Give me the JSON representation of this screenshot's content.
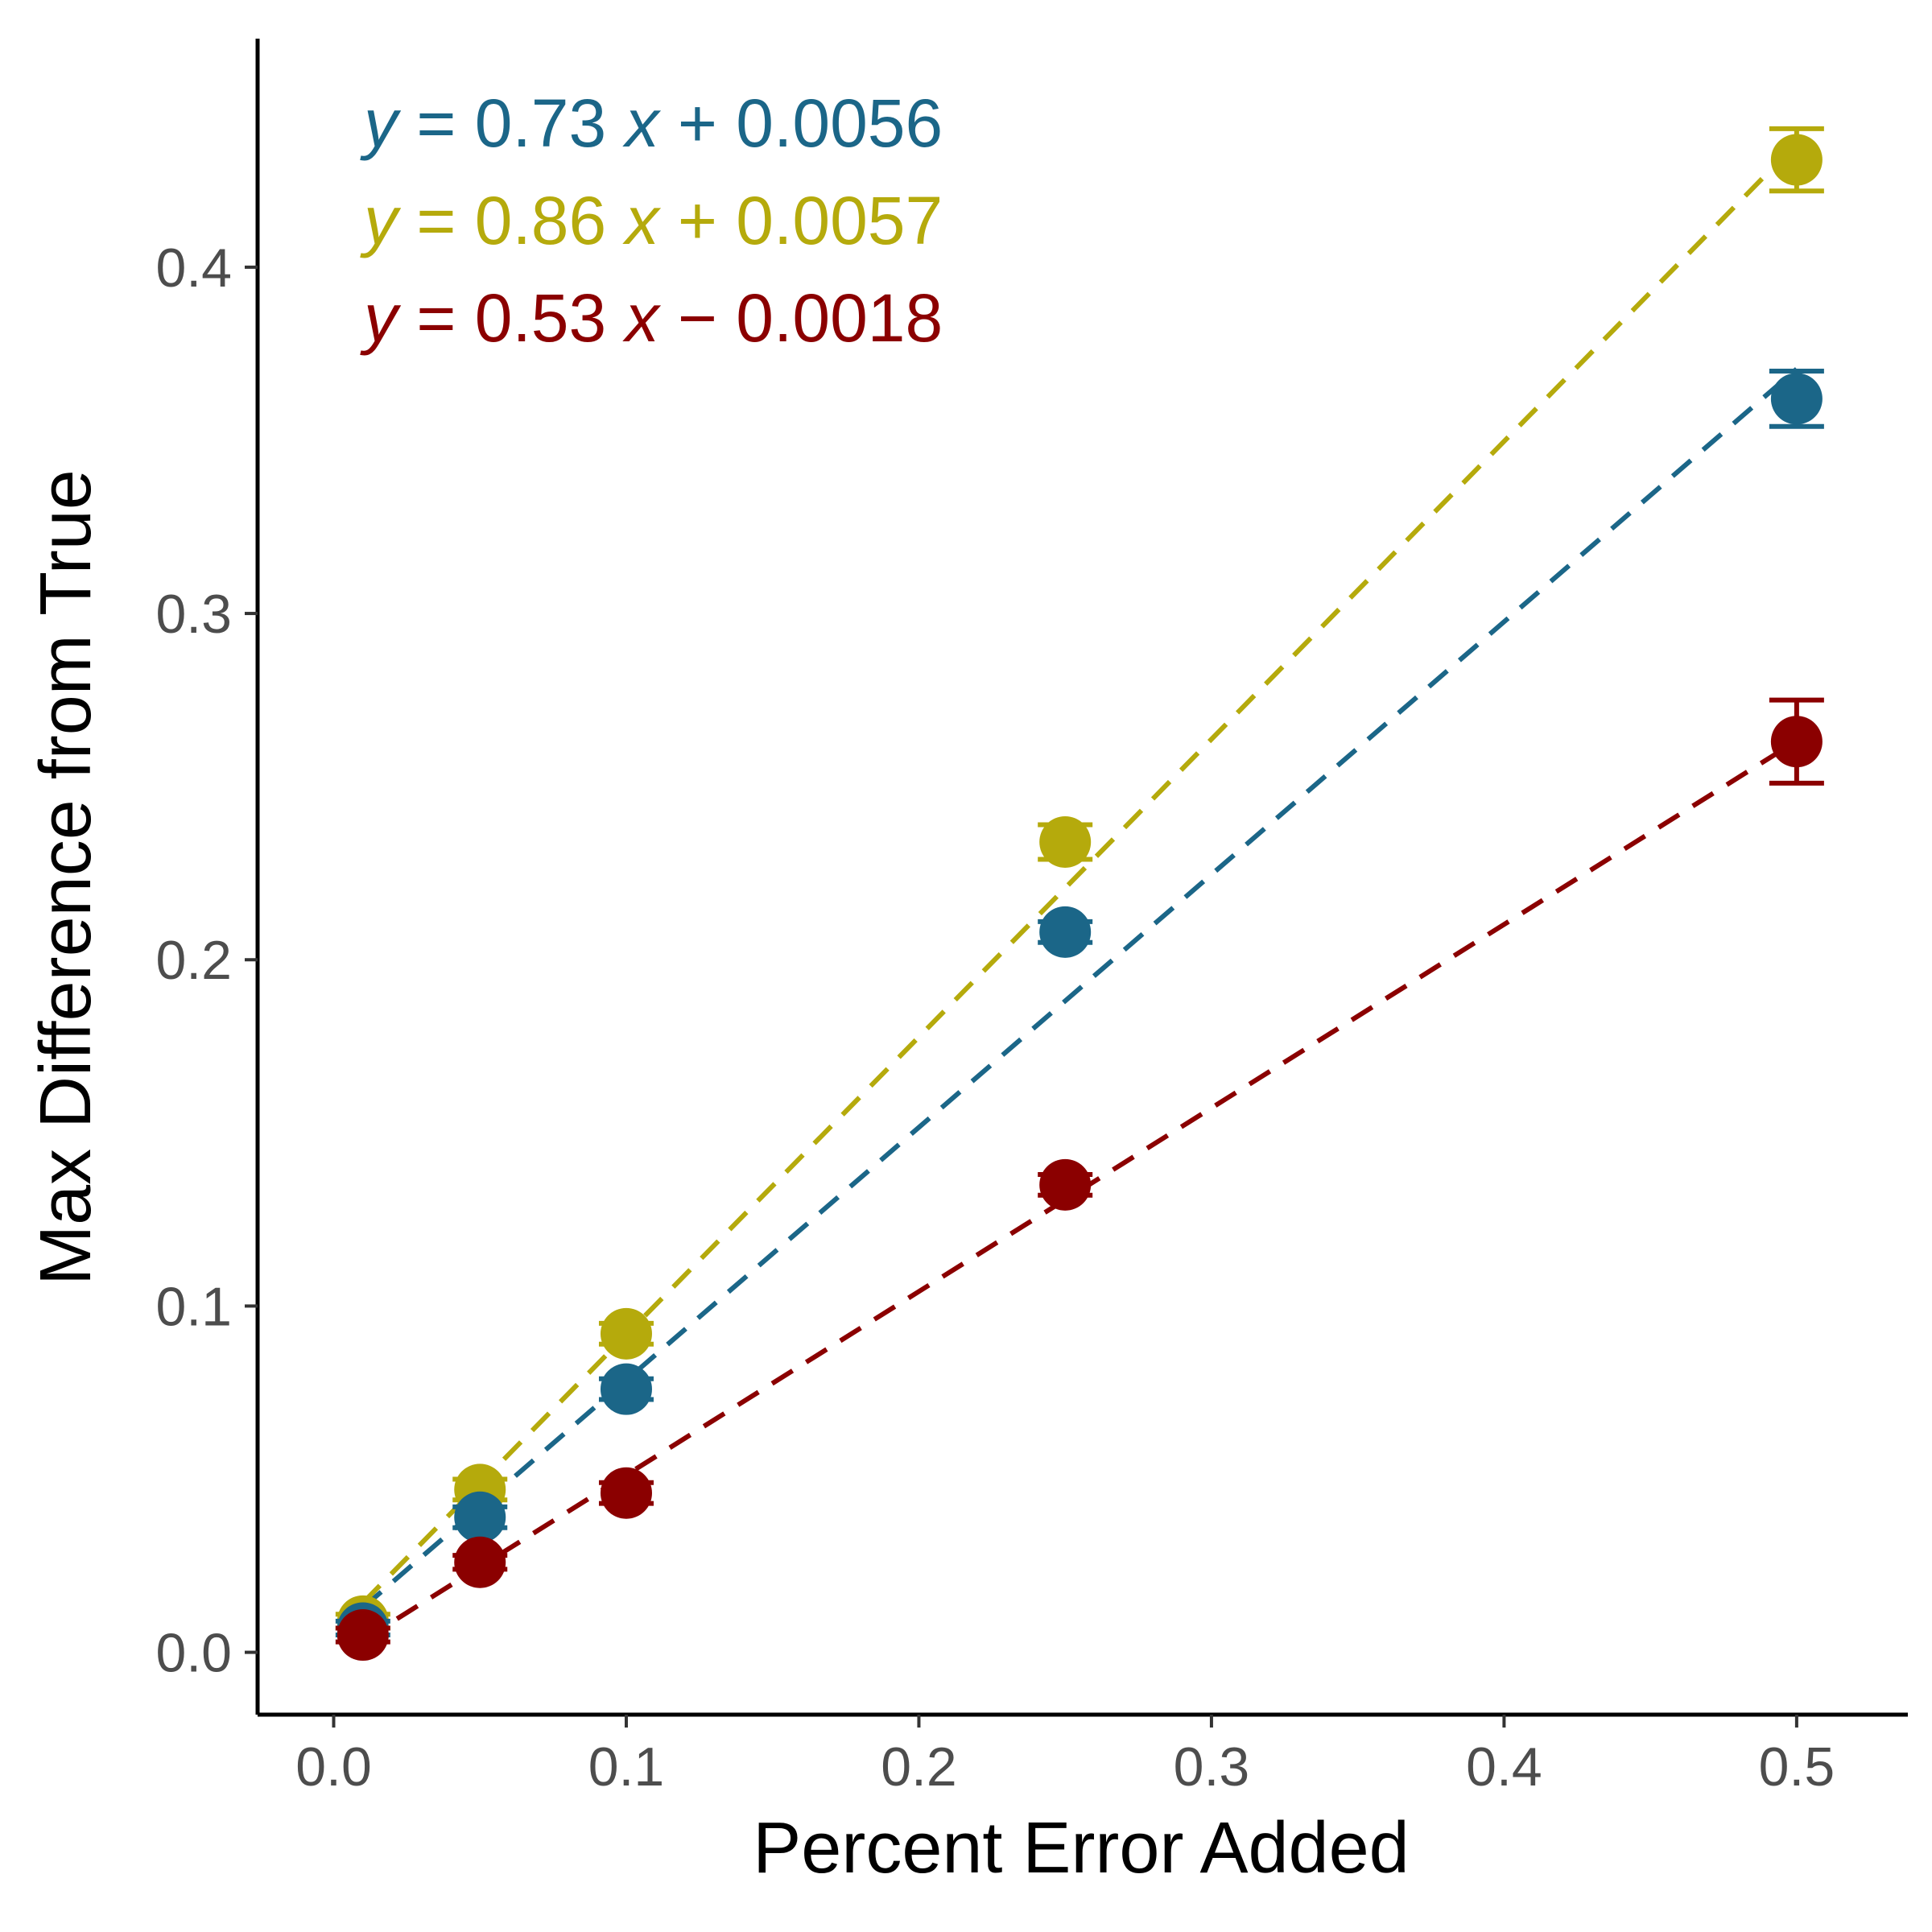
{
  "chart_data": {
    "type": "scatter",
    "xlabel": "Percent Error Added",
    "ylabel": "Max Difference from True",
    "xlim": [
      -0.026,
      0.538
    ],
    "ylim": [
      -0.018,
      0.466
    ],
    "x_ticks": [
      "0.0",
      "0.1",
      "0.2",
      "0.3",
      "0.4",
      "0.5"
    ],
    "x_tick_values": [
      0.0,
      0.1,
      0.2,
      0.3,
      0.4,
      0.5
    ],
    "y_ticks": [
      "0.0",
      "0.1",
      "0.2",
      "0.3",
      "0.4"
    ],
    "y_tick_values": [
      0.0,
      0.1,
      0.2,
      0.3,
      0.4
    ],
    "grid": false,
    "legend": "none",
    "series": [
      {
        "color": "#1b6688",
        "equation": {
          "y": "y",
          "eq": " = 0.73 ",
          "x": "x",
          "rest": " + 0.0056"
        },
        "slope": 0.73,
        "intercept": 0.0056,
        "x": [
          0.01,
          0.05,
          0.1,
          0.25,
          0.5
        ],
        "y": [
          0.007,
          0.039,
          0.076,
          0.208,
          0.362
        ],
        "err": [
          0.002,
          0.003,
          0.003,
          0.003,
          0.008
        ]
      },
      {
        "color": "#b5aa0c",
        "equation": {
          "y": "y",
          "eq": " = 0.86 ",
          "x": "x",
          "rest": " + 0.0057"
        },
        "slope": 0.86,
        "intercept": 0.0057,
        "x": [
          0.01,
          0.05,
          0.1,
          0.25,
          0.5
        ],
        "y": [
          0.009,
          0.047,
          0.092,
          0.234,
          0.431
        ],
        "err": [
          0.002,
          0.003,
          0.003,
          0.005,
          0.009
        ]
      },
      {
        "color": "#8b0000",
        "equation": {
          "y": "y",
          "eq": " = 0.53 ",
          "x": "x",
          "rest": " − 0.0018"
        },
        "slope": 0.53,
        "intercept": -0.0018,
        "x": [
          0.01,
          0.05,
          0.1,
          0.25,
          0.5
        ],
        "y": [
          0.005,
          0.026,
          0.046,
          0.135,
          0.263
        ],
        "err": [
          0.002,
          0.002,
          0.003,
          0.003,
          0.012
        ]
      }
    ]
  }
}
